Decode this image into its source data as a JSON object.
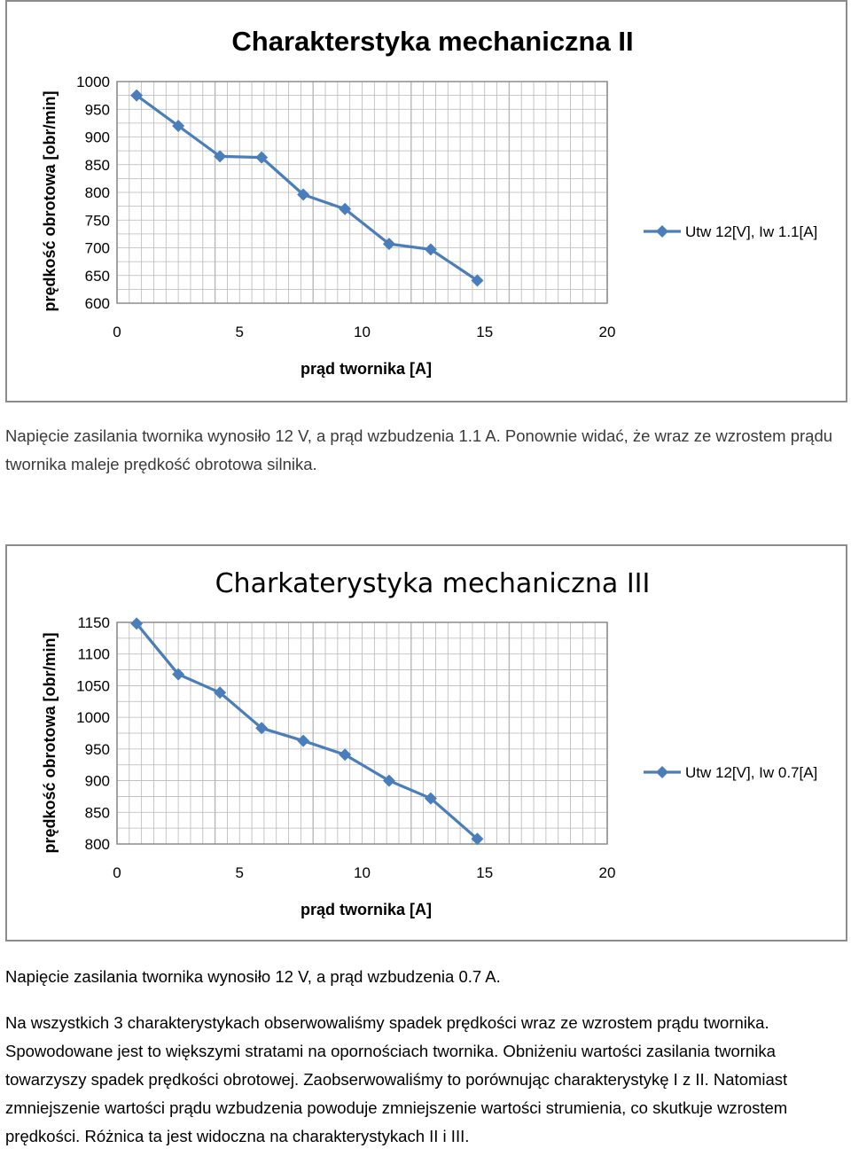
{
  "charts": [
    {
      "title": "Charakterstyka mechaniczna II",
      "ylabel": "prędkość obrotowa [obr/min]",
      "xlabel": "prąd twornika [A]",
      "legend": "Utw 12[V], Iw 1.1[A]",
      "chart_data": {
        "type": "line",
        "title": "Charakterstyka mechaniczna II",
        "xlabel": "prąd twornika [A]",
        "ylabel": "prędkość obrotowa [obr/min]",
        "xlim": [
          0,
          20
        ],
        "ylim": [
          600,
          1000
        ],
        "xticks": [
          0,
          5,
          10,
          15,
          20
        ],
        "yticks": [
          600,
          650,
          700,
          750,
          800,
          850,
          900,
          950,
          1000
        ],
        "grid": true,
        "legend_position": "right",
        "series": [
          {
            "name": "Utw 12[V], Iw 1.1[A]",
            "x": [
              0.8,
              2.5,
              4.2,
              5.9,
              7.6,
              9.3,
              11.1,
              12.8,
              14.7
            ],
            "y": [
              975,
              920,
              865,
              863,
              796,
              770,
              707,
              697,
              641
            ]
          }
        ]
      }
    },
    {
      "title": "Charkaterystyka mechaniczna III",
      "ylabel": "prędkość obrotowa [obr/min]",
      "xlabel": "prąd twornika [A]",
      "legend": "Utw 12[V], Iw 0.7[A]",
      "chart_data": {
        "type": "line",
        "title": "Charkaterystyka mechaniczna III",
        "xlabel": "prąd twornika [A]",
        "ylabel": "prędkość obrotowa [obr/min]",
        "xlim": [
          0,
          20
        ],
        "ylim": [
          800,
          1150
        ],
        "xticks": [
          0,
          5,
          10,
          15,
          20
        ],
        "yticks": [
          800,
          850,
          900,
          950,
          1000,
          1050,
          1100,
          1150
        ],
        "grid": true,
        "legend_position": "right",
        "series": [
          {
            "name": "Utw 12[V], Iw 0.7[A]",
            "x": [
              0.8,
              2.5,
              4.2,
              5.9,
              7.6,
              9.3,
              11.1,
              12.8,
              14.7
            ],
            "y": [
              1148,
              1068,
              1039,
              983,
              963,
              941,
              900,
              872,
              808
            ]
          }
        ]
      }
    }
  ],
  "paragraphs": {
    "p1": "Napięcie zasilania twornika wynosiło 12 V, a prąd wzbudzenia 1.1 A. Ponownie widać, że wraz ze wzrostem prądu twornika maleje prędkość obrotowa silnika.",
    "p2": "Napięcie zasilania twornika wynosiło 12 V, a prąd wzbudzenia 0.7 A.",
    "p3": "Na wszystkich 3 charakterystykach obserwowaliśmy spadek prędkości wraz ze wzrostem prądu twornika. Spowodowane jest to większymi stratami na opornościach twornika. Obniżeniu wartości zasilania twornika towarzyszy spadek prędkości obrotowej. Zaobserwowaliśmy to porównując charakterystykę I z II. Natomiast zmniejszenie wartości prądu wzbudzenia powoduje zmniejszenie wartości strumienia, co skutkuje wzrostem prędkości. Różnica ta jest widoczna na charakterystykach II i III."
  },
  "colors": {
    "series": "#4a7ebb",
    "grid": "#b8b8b8",
    "axis": "#8c8c8c"
  }
}
